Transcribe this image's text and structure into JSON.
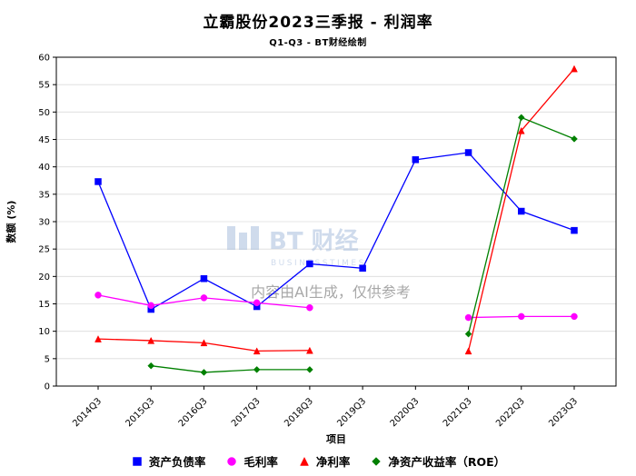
{
  "page": {
    "title": "立霸股份2023三季报 - 利润率",
    "subtitle": "Q1-Q3 - BT财经绘制"
  },
  "watermark": {
    "brand": "BT 财经",
    "brand_sub": "BUSINESSTIMES",
    "ai_note": "内容由AI生成，仅供参考",
    "brand_color": "#a9bedd",
    "ai_note_color": "#929292"
  },
  "chart_data": {
    "type": "line",
    "title": "立霸股份2023三季报 - 利润率",
    "subtitle": "Q1-Q3 - BT财经绘制",
    "xlabel": "项目",
    "ylabel": "数额 (%)",
    "ylim": [
      0,
      60
    ],
    "ytick_step": 5,
    "grid": true,
    "legend_position": "bottom",
    "categories": [
      "2014Q3",
      "2015Q3",
      "2016Q3",
      "2017Q3",
      "2018Q3",
      "2019Q3",
      "2020Q3",
      "2021Q3",
      "2022Q3",
      "2023Q3"
    ],
    "series": [
      {
        "name": "资产负债率",
        "color": "#0000ff",
        "marker": "square",
        "values": [
          37.3,
          14.0,
          19.6,
          14.5,
          22.3,
          21.5,
          41.3,
          42.6,
          31.9,
          28.4
        ]
      },
      {
        "name": "毛利率",
        "color": "#ff00ff",
        "marker": "circle",
        "values": [
          16.6,
          14.7,
          16.1,
          15.2,
          14.3,
          null,
          null,
          12.5,
          12.7,
          12.7
        ]
      },
      {
        "name": "净利率",
        "color": "#ff0000",
        "marker": "triangle",
        "values": [
          8.6,
          8.3,
          7.9,
          6.4,
          6.5,
          null,
          null,
          6.4,
          46.6,
          57.9
        ]
      },
      {
        "name": "净资产收益率（ROE）",
        "color": "#008000",
        "marker": "diamond",
        "values": [
          null,
          3.7,
          2.5,
          3.0,
          3.0,
          null,
          null,
          9.5,
          49.0,
          45.1
        ]
      }
    ]
  }
}
